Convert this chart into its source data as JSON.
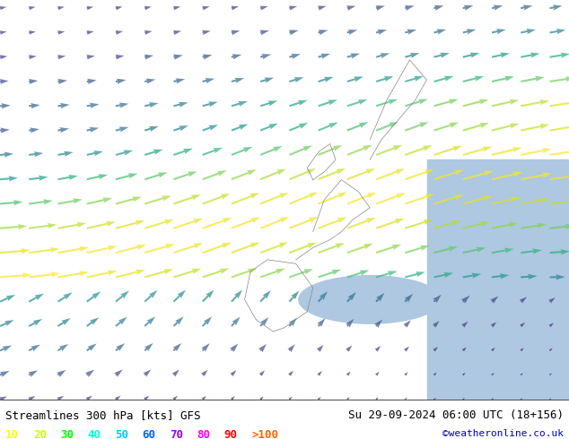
{
  "title_left": "Streamlines 300 hPa [kts] GFS",
  "title_right": "Su 29-09-2024 06:00 UTC (18+156)",
  "credit": "©weatheronline.co.uk",
  "legend_values": [
    "10",
    "20",
    "30",
    "40",
    "50",
    "60",
    "70",
    "80",
    "90",
    ">100"
  ],
  "legend_colors": [
    "#ffff00",
    "#c8ff00",
    "#00ff00",
    "#00ffcc",
    "#00ccff",
    "#0066ff",
    "#9900ff",
    "#ff00ff",
    "#ff0000",
    "#ff6600"
  ],
  "background_map_color": "#90ee90",
  "ocean_color": "#b0d0f0",
  "text_color": "#000000",
  "title_fontsize": 9,
  "legend_fontsize": 9,
  "fig_width": 6.34,
  "fig_height": 4.9,
  "dpi": 100
}
